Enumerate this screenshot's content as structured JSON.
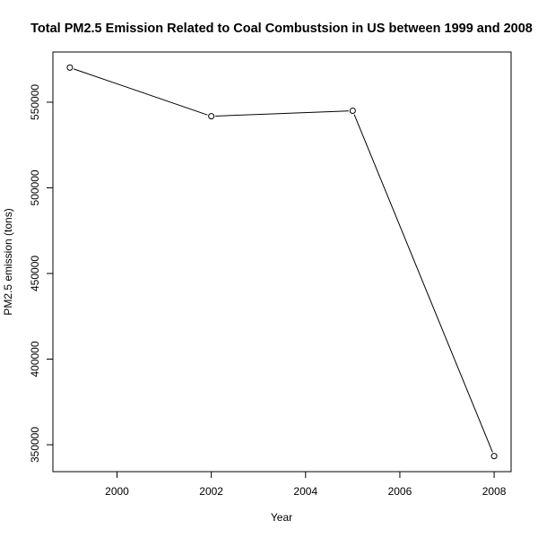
{
  "chart_data": {
    "type": "line",
    "title": "Total PM2.5 Emission Related to Coal Combustsion in US between 1999 and 2008",
    "xlabel": "Year",
    "ylabel": "PM2.5 emission (tons)",
    "x": [
      1999,
      2002,
      2005,
      2008
    ],
    "series": [
      {
        "values": [
          570200,
          541800,
          545000,
          343400
        ]
      }
    ],
    "xlim": [
      1998.64,
      2008.36
    ],
    "ylim": [
      334300,
      579300
    ],
    "xticks": [
      2000,
      2002,
      2004,
      2006,
      2008
    ],
    "yticks": [
      350000,
      400000,
      450000,
      500000,
      550000
    ],
    "xtick_labels": [
      "2000",
      "2002",
      "2004",
      "2006",
      "2008"
    ],
    "ytick_labels": [
      "350000",
      "400000",
      "450000",
      "500000",
      "550000"
    ],
    "marker": "open-circle",
    "line_color": "#000000",
    "grid": false,
    "legend": "none"
  }
}
